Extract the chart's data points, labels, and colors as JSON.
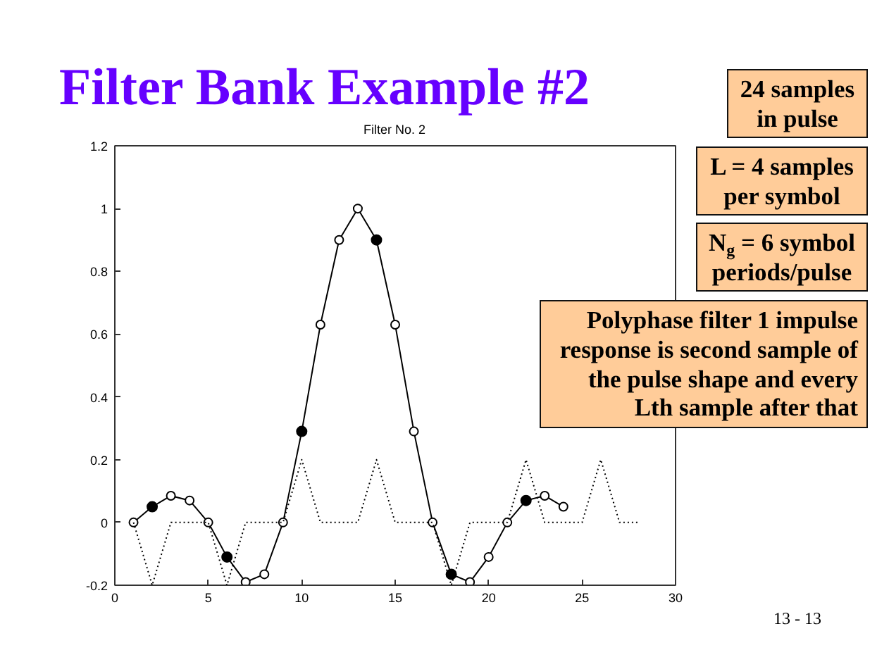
{
  "chart_data": {
    "type": "line",
    "title": "Filter Bank Example #2",
    "subtitle": "Filter No. 2",
    "xlim": [
      0,
      30
    ],
    "xticks": [
      0,
      5,
      10,
      15,
      20,
      25,
      30
    ],
    "ylim": [
      -0.2,
      1.2
    ],
    "yticks": [
      -0.2,
      0,
      0.2,
      0.4,
      0.6,
      0.8,
      1,
      1.2
    ],
    "series": [
      {
        "color": "#000000",
        "marker": "circle",
        "x": [
          1,
          2,
          3,
          4,
          5,
          6,
          7,
          8,
          9,
          10,
          11,
          12,
          13,
          14,
          15,
          16,
          17,
          18,
          19,
          20,
          21,
          22,
          23,
          24
        ],
        "values": [
          0,
          0.05,
          0.085,
          0.07,
          0,
          -0.11,
          -0.19,
          -0.165,
          0,
          0.29,
          0.63,
          0.9,
          1,
          0.9,
          0.63,
          0.29,
          0,
          -0.165,
          -0.19,
          -0.11,
          0,
          0.07,
          0.085,
          0.05
        ]
      },
      {
        "type": "scatter",
        "color": "#000000",
        "marker": "circle",
        "x": [
          2,
          6,
          10,
          14,
          18,
          22
        ],
        "values": [
          0.05,
          -0.11,
          0.29,
          0.9,
          -0.165,
          0.07
        ]
      },
      {
        "color": "#000000",
        "line_style": "dotted",
        "x": [
          1,
          2,
          3,
          4,
          5,
          6,
          7,
          8,
          9,
          10,
          11,
          12,
          13,
          14,
          15,
          16,
          17,
          18,
          19,
          20,
          21,
          22,
          23,
          24,
          25,
          26,
          27,
          28
        ],
        "values": [
          0,
          -0.2,
          0,
          0,
          0,
          -0.2,
          0,
          0,
          0,
          0.2,
          0,
          0,
          0,
          0.2,
          0,
          0,
          0,
          -0.2,
          0,
          0,
          0,
          0.2,
          0,
          0,
          0,
          0.2,
          0,
          0
        ]
      }
    ],
    "annotations": [
      "24 samples\nin pulse",
      "L = 4 samples\nper symbol",
      "N$_{g}$ = 6 symbol\nperiods/pulse",
      "Polyphase filter 1 impulse\nresponse is second sample of\nthe pulse shape and every\nLth sample after that",
      "13 - 13"
    ]
  }
}
